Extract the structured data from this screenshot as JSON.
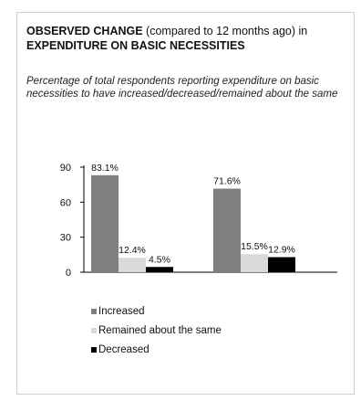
{
  "title": {
    "bold1": "OBSERVED CHANGE",
    "normal": " (compared to 12 months ago) in ",
    "bold2": "EXPENDITURE ON BASIC NECESSITIES"
  },
  "subtitle": "Percentage of total respondents reporting expenditure on basic necessities to have increased/decreased/remained about the same",
  "colors": {
    "increased": "#7f7f7f",
    "remained": "#d9d9d9",
    "decreased": "#000000"
  },
  "chart_data": {
    "type": "bar",
    "title": "",
    "xlabel": "",
    "ylabel": "",
    "ylim": [
      0,
      90
    ],
    "yticks": [
      0,
      30,
      60,
      90
    ],
    "grid": false,
    "legend_position": "bottom",
    "groups": 2,
    "series": [
      {
        "name": "Increased",
        "values": [
          83.1,
          71.6
        ],
        "labels": [
          "83.1%",
          "71.6%"
        ],
        "color": "#7f7f7f"
      },
      {
        "name": "Remained about the same",
        "values": [
          12.4,
          15.5
        ],
        "labels": [
          "12.4%",
          "15.5%"
        ],
        "color": "#d9d9d9"
      },
      {
        "name": "Decreased",
        "values": [
          4.5,
          12.9
        ],
        "labels": [
          "4.5%",
          "12.9%"
        ],
        "color": "#000000"
      }
    ]
  }
}
